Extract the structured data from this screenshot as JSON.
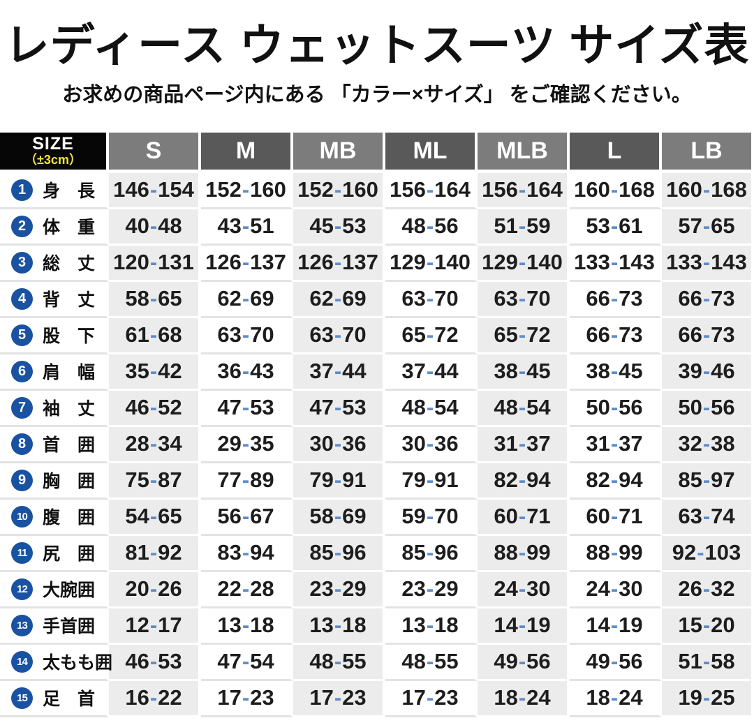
{
  "title": "レディース ウェットスーツ サイズ表",
  "subtitle": "お求めの商品ページ内にある 「カラー×サイズ」 をご確認ください。",
  "colors": {
    "accent_blue": "#1a52a2",
    "dash_blue": "#5f8cc9",
    "header_gray_light": "#7c7c7c",
    "header_gray_dark": "#595959",
    "cell_gray": "#ececec",
    "tolerance_yellow": "#f2e438",
    "bar_black": "#0c0c0c"
  },
  "table": {
    "corner": {
      "line1": "SIZE",
      "line2": "（±3cm）"
    },
    "columns": [
      "S",
      "M",
      "MB",
      "ML",
      "MLB",
      "L",
      "LB"
    ],
    "rows": [
      {
        "num": "1",
        "label": "身　長",
        "values": [
          "146-154",
          "152-160",
          "152-160",
          "156-164",
          "156-164",
          "160-168",
          "160-168"
        ]
      },
      {
        "num": "2",
        "label": "体　重",
        "values": [
          "40-48",
          "43-51",
          "45-53",
          "48-56",
          "51-59",
          "53-61",
          "57-65"
        ]
      },
      {
        "num": "3",
        "label": "総　丈",
        "values": [
          "120-131",
          "126-137",
          "126-137",
          "129-140",
          "129-140",
          "133-143",
          "133-143"
        ]
      },
      {
        "num": "4",
        "label": "背　丈",
        "values": [
          "58-65",
          "62-69",
          "62-69",
          "63-70",
          "63-70",
          "66-73",
          "66-73"
        ]
      },
      {
        "num": "5",
        "label": "股　下",
        "values": [
          "61-68",
          "63-70",
          "63-70",
          "65-72",
          "65-72",
          "66-73",
          "66-73"
        ]
      },
      {
        "num": "6",
        "label": "肩　幅",
        "values": [
          "35-42",
          "36-43",
          "37-44",
          "37-44",
          "38-45",
          "38-45",
          "39-46"
        ]
      },
      {
        "num": "7",
        "label": "袖　丈",
        "values": [
          "46-52",
          "47-53",
          "47-53",
          "48-54",
          "48-54",
          "50-56",
          "50-56"
        ]
      },
      {
        "num": "8",
        "label": "首　囲",
        "values": [
          "28-34",
          "29-35",
          "30-36",
          "30-36",
          "31-37",
          "31-37",
          "32-38"
        ]
      },
      {
        "num": "9",
        "label": "胸　囲",
        "values": [
          "75-87",
          "77-89",
          "79-91",
          "79-91",
          "82-94",
          "82-94",
          "85-97"
        ]
      },
      {
        "num": "10",
        "label": "腹　囲",
        "values": [
          "54-65",
          "56-67",
          "58-69",
          "59-70",
          "60-71",
          "60-71",
          "63-74"
        ]
      },
      {
        "num": "11",
        "label": "尻　囲",
        "values": [
          "81-92",
          "83-94",
          "85-96",
          "85-96",
          "88-99",
          "88-99",
          "92-103"
        ]
      },
      {
        "num": "12",
        "label": "大腕囲",
        "values": [
          "20-26",
          "22-28",
          "23-29",
          "23-29",
          "24-30",
          "24-30",
          "26-32"
        ]
      },
      {
        "num": "13",
        "label": "手首囲",
        "values": [
          "12-17",
          "13-18",
          "13-18",
          "13-18",
          "14-19",
          "14-19",
          "15-20"
        ]
      },
      {
        "num": "14",
        "label": "太もも囲",
        "values": [
          "46-53",
          "47-54",
          "48-55",
          "48-55",
          "49-56",
          "49-56",
          "51-58"
        ]
      },
      {
        "num": "15",
        "label": "足　首",
        "values": [
          "16-22",
          "17-23",
          "17-23",
          "17-23",
          "18-24",
          "18-24",
          "19-25"
        ]
      }
    ]
  }
}
